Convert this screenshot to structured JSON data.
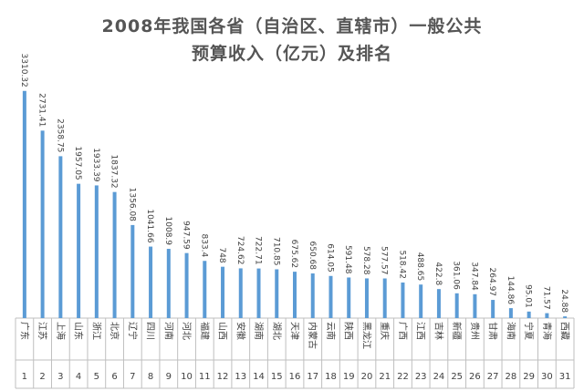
{
  "title_lines": [
    "2008年我国各省（自治区、直辖市）一般公共",
    "预算收入（亿元）及排名"
  ],
  "colors": {
    "bar": "#5b9bd5",
    "grid": "#bfbfbf",
    "text": "#404040",
    "title": "#555555"
  },
  "chart_data": {
    "type": "bar",
    "title": "2008年我国各省（自治区、直辖市）一般公共预算收入（亿元）及排名",
    "categories": [
      "广东",
      "江苏",
      "上海",
      "山东",
      "浙江",
      "北京",
      "辽宁",
      "四川",
      "河南",
      "河北",
      "福建",
      "山西",
      "安徽",
      "湖南",
      "湖北",
      "天津",
      "内蒙古",
      "云南",
      "陕西",
      "黑龙江",
      "重庆",
      "广西",
      "江西",
      "吉林",
      "新疆",
      "贵州",
      "甘肃",
      "海南",
      "宁夏",
      "青海",
      "西藏"
    ],
    "values": [
      3310.32,
      2731.41,
      2358.75,
      1957.05,
      1933.39,
      1837.32,
      1356.08,
      1041.66,
      1008.9,
      947.59,
      833.4,
      748,
      724.62,
      722.71,
      710.85,
      675.62,
      650.68,
      614.05,
      591.48,
      578.28,
      577.57,
      518.42,
      488.65,
      422.8,
      361.06,
      347.84,
      264.97,
      144.86,
      95.01,
      71.57,
      24.88
    ],
    "value_labels": [
      "3310.32",
      "2731.41",
      "2358.75",
      "1957.05",
      "1933.39",
      "1837.32",
      "1356.08",
      "1041.66",
      "1008.9",
      "947.59",
      "833.4",
      "748",
      "724.62",
      "722.71",
      "710.85",
      "675.62",
      "650.68",
      "614.05",
      "591.48",
      "578.28",
      "577.57",
      "518.42",
      "488.65",
      "422.8",
      "361.06",
      "347.84",
      "264.97",
      "144.86",
      "95.01",
      "71.57",
      "24.88"
    ],
    "ranks": [
      "1",
      "2",
      "3",
      "4",
      "5",
      "6",
      "7",
      "8",
      "9",
      "10",
      "11",
      "12",
      "13",
      "14",
      "15",
      "16",
      "17",
      "18",
      "19",
      "20",
      "21",
      "22",
      "23",
      "24",
      "25",
      "26",
      "27",
      "28",
      "29",
      "30",
      "31"
    ],
    "ylim": [
      0,
      3400
    ],
    "grid": false,
    "legend": "none"
  }
}
